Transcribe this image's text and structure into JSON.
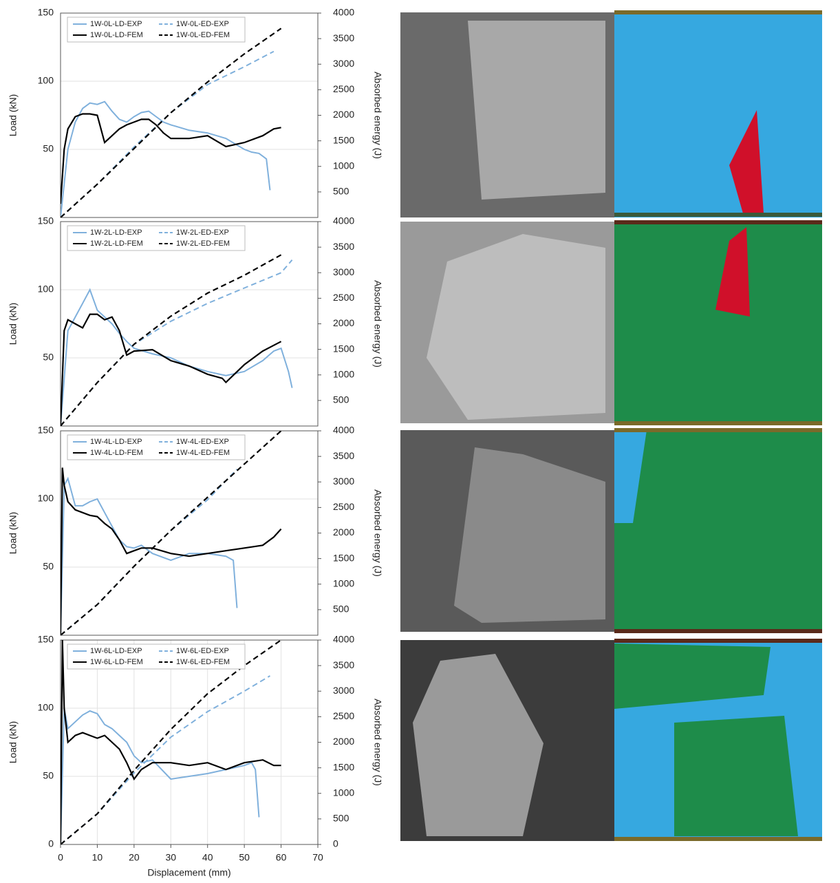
{
  "chart_data": [
    {
      "type": "line",
      "xlim": [
        0,
        70
      ],
      "ylim": [
        0,
        150
      ],
      "yticks": [
        50,
        100,
        150
      ],
      "y2lim": [
        0,
        4000
      ],
      "y2ticks": [
        500,
        1000,
        1500,
        2000,
        2500,
        3000,
        3500,
        4000
      ],
      "grid": true,
      "ylabel": "Load (kN)",
      "y2label": "Absorbed energy (J)",
      "legend": "upper left",
      "series": [
        {
          "name": "1W-0L-LD-EXP",
          "color": "#7fb0dc",
          "dashed": false,
          "x": [
            0,
            2,
            4,
            6,
            8,
            10,
            12,
            14,
            16,
            18,
            20,
            22,
            24,
            26,
            28,
            30,
            35,
            40,
            45,
            50,
            52,
            54,
            56,
            57
          ],
          "values": [
            0,
            50,
            70,
            80,
            84,
            83,
            85,
            78,
            72,
            70,
            74,
            77,
            78,
            74,
            70,
            68,
            64,
            62,
            58,
            50,
            48,
            47,
            43,
            20
          ]
        },
        {
          "name": "1W-0L-ED-EXP",
          "color": "#7fb0dc",
          "dashed": true,
          "axis": "y2",
          "x": [
            0,
            10,
            20,
            30,
            40,
            50,
            58
          ],
          "values": [
            0,
            650,
            1380,
            2050,
            2600,
            2950,
            3250
          ]
        },
        {
          "name": "1W-0L-LD-FEM",
          "color": "#000000",
          "dashed": false,
          "x": [
            0,
            1,
            2,
            4,
            6,
            8,
            10,
            12,
            14,
            16,
            18,
            20,
            22,
            24,
            26,
            28,
            30,
            35,
            40,
            45,
            50,
            55,
            58,
            60
          ],
          "values": [
            10,
            50,
            65,
            74,
            76,
            76,
            75,
            55,
            60,
            65,
            68,
            70,
            72,
            72,
            68,
            62,
            58,
            58,
            60,
            52,
            55,
            60,
            65,
            66
          ]
        },
        {
          "name": "1W-0L-ED-FEM",
          "color": "#000000",
          "dashed": true,
          "axis": "y2",
          "x": [
            0,
            10,
            20,
            30,
            40,
            50,
            60
          ],
          "values": [
            0,
            650,
            1350,
            2050,
            2650,
            3200,
            3700
          ]
        }
      ]
    },
    {
      "type": "line",
      "xlim": [
        0,
        70
      ],
      "ylim": [
        0,
        150
      ],
      "yticks": [
        50,
        100,
        150
      ],
      "y2lim": [
        0,
        4000
      ],
      "y2ticks": [
        500,
        1000,
        1500,
        2000,
        2500,
        3000,
        3500,
        4000
      ],
      "grid": true,
      "ylabel": "Load (kN)",
      "y2label": "Absorbed energy (J)",
      "legend": "upper left",
      "series": [
        {
          "name": "1W-2L-LD-EXP",
          "color": "#7fb0dc",
          "dashed": false,
          "x": [
            0,
            2,
            4,
            6,
            8,
            10,
            12,
            14,
            16,
            18,
            20,
            25,
            30,
            35,
            40,
            45,
            50,
            55,
            58,
            60,
            62,
            63
          ],
          "values": [
            0,
            70,
            80,
            90,
            100,
            85,
            80,
            75,
            68,
            62,
            57,
            53,
            50,
            44,
            40,
            37,
            40,
            48,
            55,
            57,
            40,
            28
          ]
        },
        {
          "name": "1W-2L-ED-EXP",
          "color": "#7fb0dc",
          "dashed": true,
          "axis": "y2",
          "x": [
            0,
            10,
            20,
            30,
            40,
            50,
            60,
            63
          ],
          "values": [
            0,
            850,
            1600,
            2050,
            2400,
            2700,
            3000,
            3250
          ]
        },
        {
          "name": "1W-2L-LD-FEM",
          "color": "#000000",
          "dashed": false,
          "x": [
            0,
            1,
            2,
            4,
            6,
            8,
            10,
            12,
            14,
            16,
            18,
            20,
            25,
            30,
            35,
            40,
            44,
            45,
            50,
            55,
            60
          ],
          "values": [
            0,
            70,
            78,
            75,
            72,
            82,
            82,
            78,
            80,
            70,
            52,
            55,
            56,
            48,
            44,
            38,
            35,
            32,
            45,
            55,
            62
          ]
        },
        {
          "name": "1W-2L-ED-FEM",
          "color": "#000000",
          "dashed": true,
          "axis": "y2",
          "x": [
            0,
            10,
            20,
            30,
            40,
            50,
            60
          ],
          "values": [
            0,
            850,
            1600,
            2150,
            2600,
            2950,
            3350
          ]
        }
      ]
    },
    {
      "type": "line",
      "xlim": [
        0,
        70
      ],
      "ylim": [
        0,
        150
      ],
      "yticks": [
        50,
        100,
        150
      ],
      "y2lim": [
        0,
        4000
      ],
      "y2ticks": [
        500,
        1000,
        1500,
        2000,
        2500,
        3000,
        3500,
        4000
      ],
      "grid": true,
      "ylabel": "Load (kN)",
      "y2label": "Absorbed energy (J)",
      "legend": "upper left",
      "series": [
        {
          "name": "1W-4L-LD-EXP",
          "color": "#7fb0dc",
          "dashed": false,
          "x": [
            0,
            1,
            2,
            4,
            6,
            8,
            10,
            12,
            14,
            16,
            18,
            20,
            22,
            25,
            30,
            35,
            40,
            45,
            47,
            48
          ],
          "values": [
            0,
            110,
            115,
            95,
            95,
            98,
            100,
            90,
            80,
            70,
            65,
            64,
            66,
            60,
            55,
            60,
            60,
            58,
            55,
            20
          ]
        },
        {
          "name": "1W-4L-ED-EXP",
          "color": "#7fb0dc",
          "dashed": true,
          "axis": "y2",
          "x": [
            0,
            10,
            20,
            30,
            40,
            48
          ],
          "values": [
            0,
            600,
            1350,
            2050,
            2650,
            3250
          ]
        },
        {
          "name": "1W-4L-LD-FEM",
          "color": "#000000",
          "dashed": false,
          "x": [
            0,
            0.5,
            1,
            2,
            4,
            6,
            8,
            10,
            12,
            14,
            16,
            18,
            20,
            22,
            25,
            30,
            35,
            40,
            45,
            50,
            55,
            58,
            60
          ],
          "values": [
            0,
            123,
            110,
            98,
            92,
            90,
            88,
            87,
            82,
            78,
            70,
            60,
            62,
            64,
            64,
            60,
            58,
            60,
            62,
            64,
            66,
            72,
            78
          ]
        },
        {
          "name": "1W-4L-ED-FEM",
          "color": "#000000",
          "dashed": true,
          "axis": "y2",
          "x": [
            0,
            10,
            20,
            30,
            40,
            50,
            60
          ],
          "values": [
            0,
            600,
            1350,
            2050,
            2700,
            3350,
            4000
          ]
        }
      ]
    },
    {
      "type": "line",
      "xlim": [
        0,
        70
      ],
      "ylim": [
        0,
        150
      ],
      "yticks": [
        0,
        50,
        100,
        150
      ],
      "y2lim": [
        0,
        4000
      ],
      "y2ticks": [
        0,
        500,
        1000,
        1500,
        2000,
        2500,
        3000,
        3500,
        4000
      ],
      "grid": true,
      "xticks": [
        0,
        10,
        20,
        30,
        40,
        50,
        60,
        70
      ],
      "xlabel": "Displacement (mm)",
      "ylabel": "Load (kN)",
      "y2label": "Absorbed energy (J)",
      "legend": "upper left",
      "series": [
        {
          "name": "1W-6L-LD-EXP",
          "color": "#7fb0dc",
          "dashed": false,
          "x": [
            0,
            1,
            2,
            4,
            6,
            8,
            10,
            12,
            14,
            16,
            18,
            20,
            22,
            25,
            30,
            35,
            40,
            45,
            50,
            52,
            53,
            54
          ],
          "values": [
            0,
            100,
            85,
            90,
            95,
            98,
            96,
            88,
            85,
            80,
            75,
            65,
            60,
            62,
            48,
            50,
            52,
            55,
            58,
            60,
            55,
            20
          ]
        },
        {
          "name": "1W-6L-ED-EXP",
          "color": "#7fb0dc",
          "dashed": true,
          "axis": "y2",
          "x": [
            0,
            10,
            20,
            30,
            40,
            50,
            57
          ],
          "values": [
            0,
            600,
            1400,
            2100,
            2600,
            3000,
            3300
          ]
        },
        {
          "name": "1W-6L-LD-FEM",
          "color": "#000000",
          "dashed": false,
          "x": [
            0,
            0.5,
            1,
            2,
            4,
            6,
            8,
            10,
            12,
            14,
            16,
            18,
            20,
            22,
            25,
            30,
            35,
            40,
            45,
            50,
            55,
            58,
            60
          ],
          "values": [
            0,
            150,
            100,
            75,
            80,
            82,
            80,
            78,
            80,
            75,
            70,
            60,
            48,
            55,
            60,
            60,
            58,
            60,
            55,
            60,
            62,
            58,
            58
          ]
        },
        {
          "name": "1W-6L-ED-FEM",
          "color": "#000000",
          "dashed": true,
          "axis": "y2",
          "x": [
            0,
            10,
            20,
            30,
            40,
            50,
            60
          ],
          "values": [
            0,
            600,
            1450,
            2250,
            2950,
            3500,
            4000
          ]
        }
      ]
    }
  ]
}
